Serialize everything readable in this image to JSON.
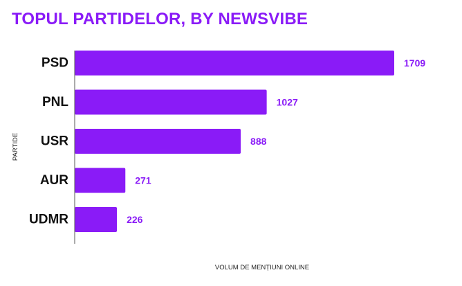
{
  "chart_data": {
    "type": "bar",
    "orientation": "horizontal",
    "title": "TOPUL PARTIDELOR, BY NEWSVIBE",
    "xlabel": "VOLUM DE MENȚIUNI ONLINE",
    "ylabel": "PARTIDE",
    "categories": [
      "PSD",
      "PNL",
      "USR",
      "AUR",
      "UDMR"
    ],
    "values": [
      1709,
      1027,
      888,
      271,
      226
    ],
    "xlim": [
      0,
      1709
    ],
    "grid": false,
    "legend": "none",
    "data_labels": true
  },
  "colors": {
    "accent": "#8a1bf7",
    "title": "#8a1bf7",
    "data_label": "#8a1bf7",
    "category_label": "#111111",
    "axis_label": "#222222",
    "axis_line": "#555555"
  }
}
